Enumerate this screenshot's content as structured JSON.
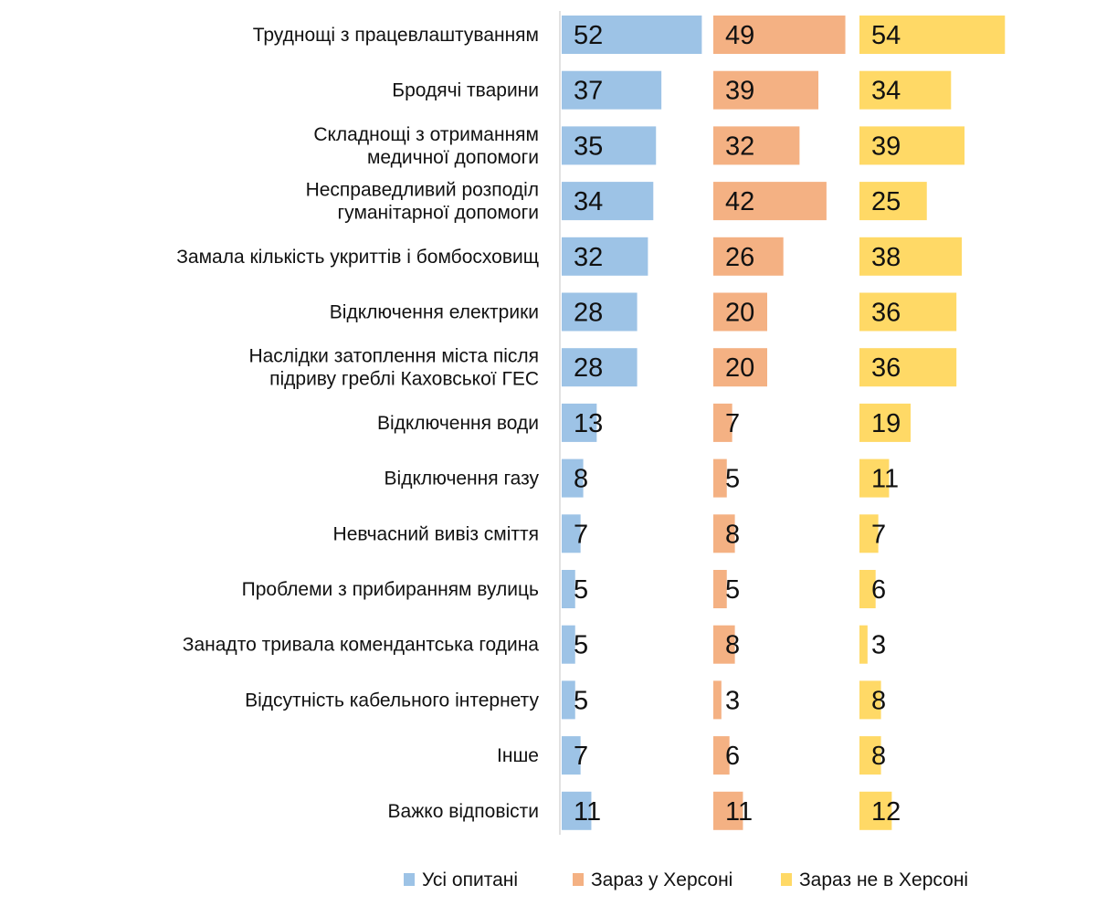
{
  "chart_data": {
    "type": "bar",
    "orientation": "horizontal",
    "layout": "small-multiples",
    "xlim": [
      0,
      60
    ],
    "grid": false,
    "legend_position": "bottom",
    "categories": [
      [
        "Труднощі з працевлаштуванням"
      ],
      [
        "Бродячі тварини"
      ],
      [
        "Складнощі з отриманням",
        "медичної допомоги"
      ],
      [
        "Несправедливий розподіл",
        "гуманітарної допомоги"
      ],
      [
        "Замала кількість укриттів і бомбосховищ"
      ],
      [
        "Відключення електрики"
      ],
      [
        "Наслідки затоплення міста після",
        "підриву греблі Каховської ГЕС"
      ],
      [
        "Відключення води"
      ],
      [
        "Відключення газу"
      ],
      [
        "Невчасний вивіз сміття"
      ],
      [
        "Проблеми з прибиранням вулиць"
      ],
      [
        "Занадто тривала комендантська година"
      ],
      [
        "Відсутність кабельного інтернету"
      ],
      [
        "Інше"
      ],
      [
        "Важко відповісти"
      ]
    ],
    "series": [
      {
        "name": "Усі опитані",
        "color": "#9DC3E6",
        "values": [
          52,
          37,
          35,
          34,
          32,
          28,
          28,
          13,
          8,
          7,
          5,
          5,
          5,
          7,
          11
        ]
      },
      {
        "name": "Зараз у Херсоні",
        "color": "#F4B183",
        "values": [
          49,
          39,
          32,
          42,
          26,
          20,
          20,
          7,
          5,
          8,
          5,
          8,
          3,
          6,
          11
        ]
      },
      {
        "name": "Зараз не в Херсоні",
        "color": "#FFD966",
        "values": [
          54,
          34,
          39,
          25,
          38,
          36,
          36,
          19,
          11,
          7,
          6,
          3,
          8,
          8,
          12
        ]
      }
    ]
  }
}
